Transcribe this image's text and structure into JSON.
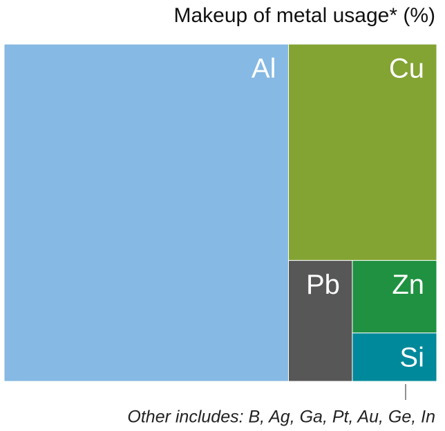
{
  "chart_data": {
    "type": "treemap",
    "title": "Makeup of metal usage* (%)",
    "categories": [
      "Al",
      "Cu",
      "Pb",
      "Zn",
      "Si"
    ],
    "values": [
      65.8,
      22.0,
      5.3,
      4.2,
      2.8
    ],
    "colors": [
      "#86b9e3",
      "#83a333",
      "#575757",
      "#1f9140",
      "#00899a"
    ],
    "annotation": "Other includes: B, Ag, Ga, Pt, Au, Ge, In"
  }
}
